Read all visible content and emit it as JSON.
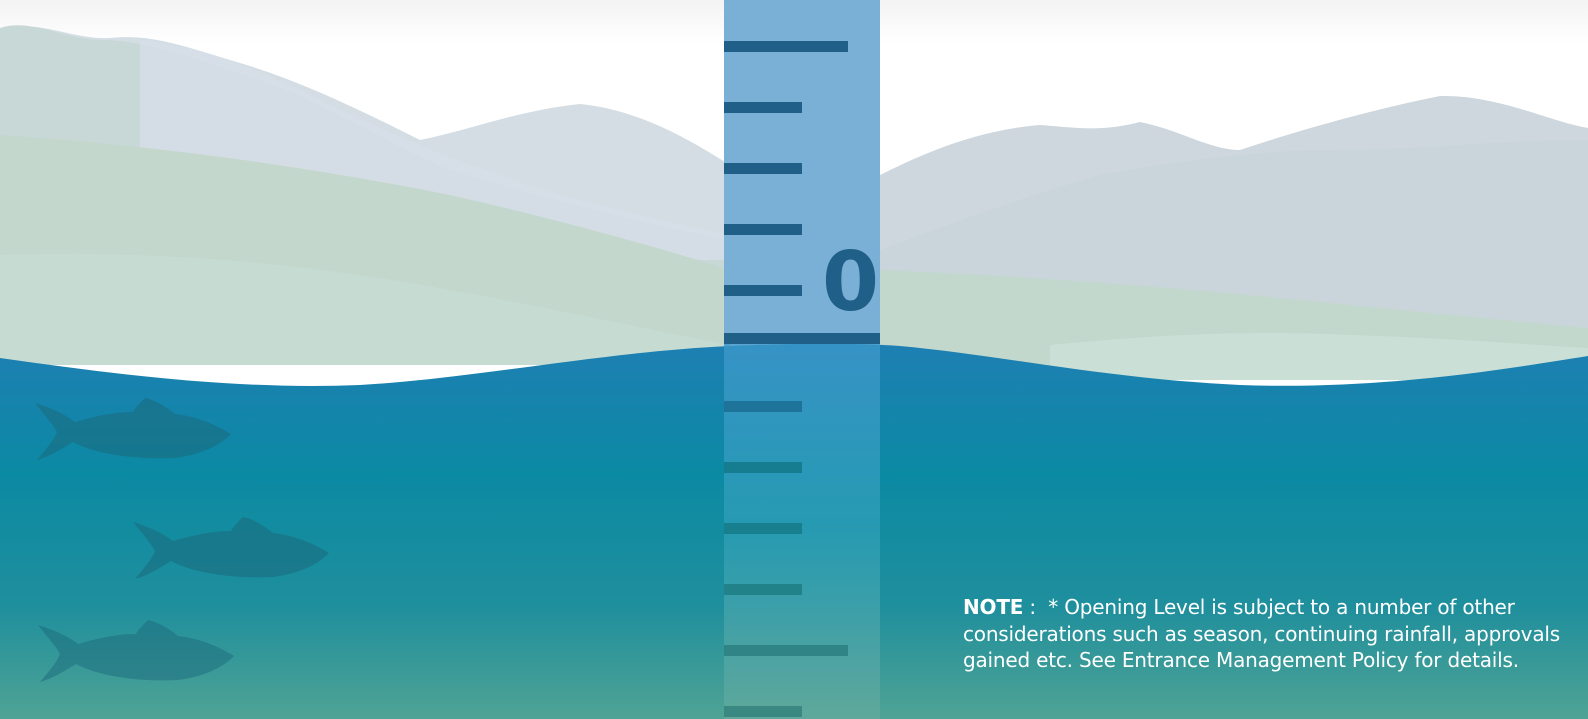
{
  "gauge": {
    "zero_label": "0"
  },
  "note": {
    "label": "NOTE",
    "separator": ":",
    "text": "* Opening Level is subject to a number of other considerations such as season, continuing rainfall, approvals gained etc. See Entrance Management Policy for details."
  },
  "colors": {
    "sky": "#ffffff",
    "mountains": "#c9d6de",
    "hills": "#c3d8cf",
    "water_top": "#1b7db3",
    "water_bottom": "#3b9b96",
    "gauge_above": "#7ab0d6",
    "gauge_marks": "#1f5f88",
    "fish": "#1b6a7c"
  }
}
